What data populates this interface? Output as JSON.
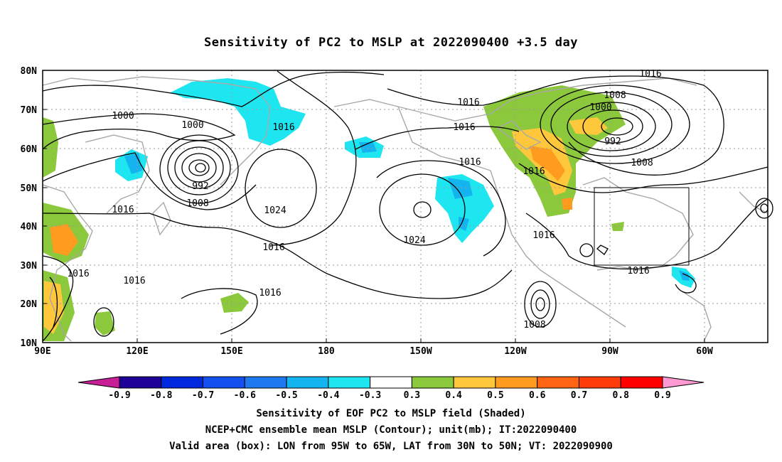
{
  "title": "Sensitivity of PC2 to MSLP at 2022090400 +3.5 day",
  "lat_labels": [
    "80N",
    "70N",
    "60N",
    "50N",
    "40N",
    "30N",
    "20N",
    "10N"
  ],
  "lon_labels": [
    "90E",
    "120E",
    "150E",
    "180",
    "150W",
    "120W",
    "90W",
    "60W"
  ],
  "contour_labels": [
    "1016",
    "1008",
    "1000",
    "1016",
    "1016",
    "1000",
    "992",
    "1016",
    "1000",
    "992",
    "1008",
    "1016",
    "1024",
    "1016",
    "1016",
    "1024",
    "1016",
    "1016",
    "1016",
    "1008",
    "1016",
    "1016",
    "1008",
    "1016"
  ],
  "colorbar": {
    "labels": [
      "-0.9",
      "-0.8",
      "-0.7",
      "-0.6",
      "-0.5",
      "-0.4",
      "-0.3",
      "0.3",
      "0.4",
      "0.5",
      "0.6",
      "0.7",
      "0.8",
      "0.9"
    ],
    "colors": [
      "#1e0096",
      "#0028dc",
      "#1450f0",
      "#1e78f0",
      "#14b4f0",
      "#1ee6f0",
      "#ffffff",
      "#8cc83c",
      "#ffc83c",
      "#ff9b1e",
      "#ff6414",
      "#ff3c0a",
      "#ff0000"
    ],
    "low_end_color": "#c81e96",
    "high_end_color": "#ff9bd2"
  },
  "footer": {
    "line1": "Sensitivity of EOF PC2 to MSLP field (Shaded)",
    "line2": "NCEP+CMC ensemble mean MSLP (Contour); unit(mb); IT:2022090400",
    "line3": "Valid area (box): LON from 95W to 65W, LAT from 30N to 50N; VT: 2022090900"
  }
}
